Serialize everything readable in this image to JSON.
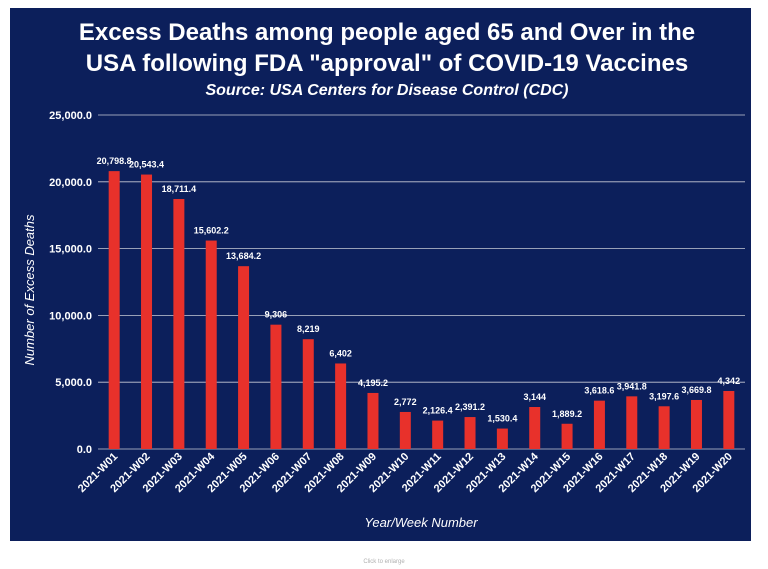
{
  "chart_data": {
    "type": "bar",
    "title_lines": [
      "Excess Deaths among people aged 65 and Over in the",
      "USA following FDA \"approval\" of COVID-19 Vaccines"
    ],
    "subtitle": "Source: USA Centers for Disease Control (CDC)",
    "xlabel": "Year/Week Number",
    "ylabel": "Number of Excess Deaths",
    "ylim": [
      0,
      25000
    ],
    "yticks": [
      "0.0",
      "5,000.0",
      "10,000.0",
      "15,000.0",
      "20,000.0",
      "25,000.0"
    ],
    "ytick_values": [
      0,
      5000,
      10000,
      15000,
      20000,
      25000
    ],
    "grid": true,
    "bar_color": "#e8312b",
    "background_color": "#0c1f5b",
    "categories": [
      "2021-W01",
      "2021-W02",
      "2021-W03",
      "2021-W04",
      "2021-W05",
      "2021-W06",
      "2021-W07",
      "2021-W08",
      "2021-W09",
      "2021-W10",
      "2021-W11",
      "2021-W12",
      "2021-W13",
      "2021-W14",
      "2021-W15",
      "2021-W16",
      "2021-W17",
      "2021-W18",
      "2021-W19",
      "2021-W20"
    ],
    "values": [
      20798.8,
      20543.4,
      18711.4,
      15602.2,
      13684.2,
      9306,
      8219,
      6402,
      4195.2,
      2772,
      2126.4,
      2391.2,
      1530.4,
      3144,
      1889.2,
      3618.6,
      3941.8,
      3197.6,
      3669.8,
      4342
    ],
    "data_labels": [
      "20,798.8",
      "20,543.4",
      "18,711.4",
      "15,602.2",
      "13,684.2",
      "9,306",
      "8,219",
      "6,402",
      "4,195.2",
      "2,772",
      "2,126.4",
      "2,391.2",
      "1,530.4",
      "3,144",
      "1,889.2",
      "3,618.6",
      "3,941.8",
      "3,197.6",
      "3,669.8",
      "4,342"
    ]
  },
  "footer": {
    "caption": "Click to enlarge"
  }
}
